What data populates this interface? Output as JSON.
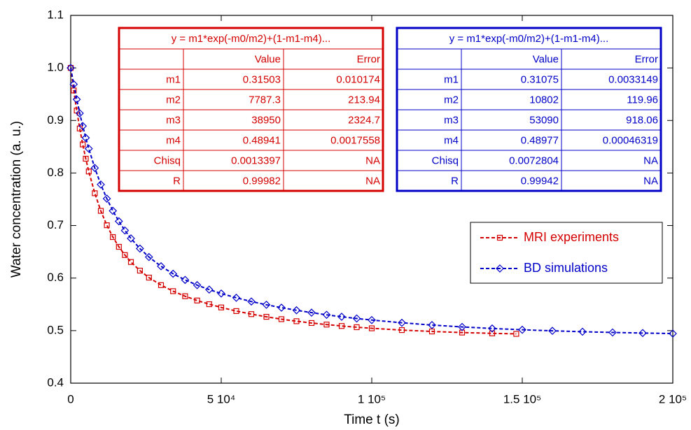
{
  "chart_data": {
    "type": "scatter",
    "x_label": "Time  t  (s)",
    "y_label": "Water concentration (a. u.)",
    "xlim": [
      0,
      200000
    ],
    "ylim": [
      0.4,
      1.1
    ],
    "xticks": [
      0,
      {
        "value": 50000,
        "label": "5 10⁴"
      },
      {
        "value": 100000,
        "label": "1 10⁵"
      },
      {
        "value": 150000,
        "label": "1.5 10⁵"
      },
      {
        "value": 200000,
        "label": "2 10⁵"
      }
    ],
    "yticks": [
      0.4,
      0.5,
      0.6,
      0.7,
      0.8,
      0.9,
      {
        "value": 1,
        "label": "1.0"
      },
      1.1
    ],
    "legend": "right",
    "series": [
      {
        "name": "MRI experiments",
        "color": "#d40000",
        "marker": "square",
        "x": [
          0,
          1000,
          2000,
          3000,
          4000,
          5000,
          6000,
          8000,
          10000,
          12000,
          14000,
          16000,
          18000,
          20000,
          23000,
          26000,
          30000,
          34000,
          38000,
          42000,
          46000,
          50000,
          55000,
          60000,
          65000,
          70000,
          75000,
          80000,
          85000,
          90000,
          95000,
          100000,
          110000,
          120000,
          130000,
          140000,
          148000
        ],
        "values": [
          1.0,
          0.9571,
          0.9189,
          0.8848,
          0.8544,
          0.8272,
          0.8029,
          0.7615,
          0.7279,
          0.7006,
          0.6781,
          0.6595,
          0.6438,
          0.6306,
          0.6142,
          0.6009,
          0.5866,
          0.5751,
          0.5655,
          0.5573,
          0.5503,
          0.5441,
          0.5372,
          0.5314,
          0.5263,
          0.5218,
          0.5179,
          0.5145,
          0.5115,
          0.5088,
          0.5065,
          0.5044,
          0.501,
          0.4984,
          0.4963,
          0.4948,
          0.4938
        ]
      },
      {
        "name": "BD simulations",
        "color": "#0000c8",
        "marker": "diamond",
        "x": [
          0,
          1000,
          2000,
          3000,
          4000,
          5000,
          6000,
          8000,
          10000,
          12000,
          14000,
          16000,
          18000,
          20000,
          23000,
          26000,
          30000,
          34000,
          38000,
          42000,
          46000,
          50000,
          55000,
          60000,
          65000,
          70000,
          75000,
          80000,
          85000,
          90000,
          95000,
          100000,
          110000,
          120000,
          130000,
          140000,
          150000,
          160000,
          170000,
          180000,
          190000,
          200000
        ],
        "values": [
          1.0,
          0.9689,
          0.9401,
          0.9137,
          0.8894,
          0.8669,
          0.8463,
          0.8096,
          0.7781,
          0.7512,
          0.728,
          0.7081,
          0.6906,
          0.6755,
          0.6561,
          0.64,
          0.6225,
          0.6082,
          0.5965,
          0.5866,
          0.5781,
          0.5706,
          0.5625,
          0.5554,
          0.5492,
          0.5437,
          0.5387,
          0.5342,
          0.5301,
          0.5264,
          0.5231,
          0.5201,
          0.5149,
          0.5106,
          0.507,
          0.5041,
          0.5016,
          0.4996,
          0.4979,
          0.4965,
          0.4954,
          0.4944
        ]
      }
    ],
    "fit_tables": [
      {
        "title": "y = m1*exp(-m0/m2)+(1-m1-m4)...",
        "color": "#d40000",
        "columns": [
          "Value",
          "Error"
        ],
        "rows": [
          [
            "m1",
            0.31503,
            0.010174
          ],
          [
            "m2",
            7787.3,
            213.94
          ],
          [
            "m3",
            38950,
            2324.7
          ],
          [
            "m4",
            0.48941,
            0.0017558
          ],
          [
            "Chisq",
            0.0013397,
            "NA"
          ],
          [
            "R",
            0.99982,
            "NA"
          ]
        ]
      },
      {
        "title": "y = m1*exp(-m0/m2)+(1-m1-m4)...",
        "color": "#0000c8",
        "columns": [
          "Value",
          "Error"
        ],
        "rows": [
          [
            "m1",
            0.31075,
            0.0033149
          ],
          [
            "m2",
            10802,
            119.96
          ],
          [
            "m3",
            53090,
            918.06
          ],
          [
            "m4",
            0.48977,
            0.00046319
          ],
          [
            "Chisq",
            0.0072804,
            "NA"
          ],
          [
            "R",
            0.99942,
            "NA"
          ]
        ]
      }
    ]
  }
}
